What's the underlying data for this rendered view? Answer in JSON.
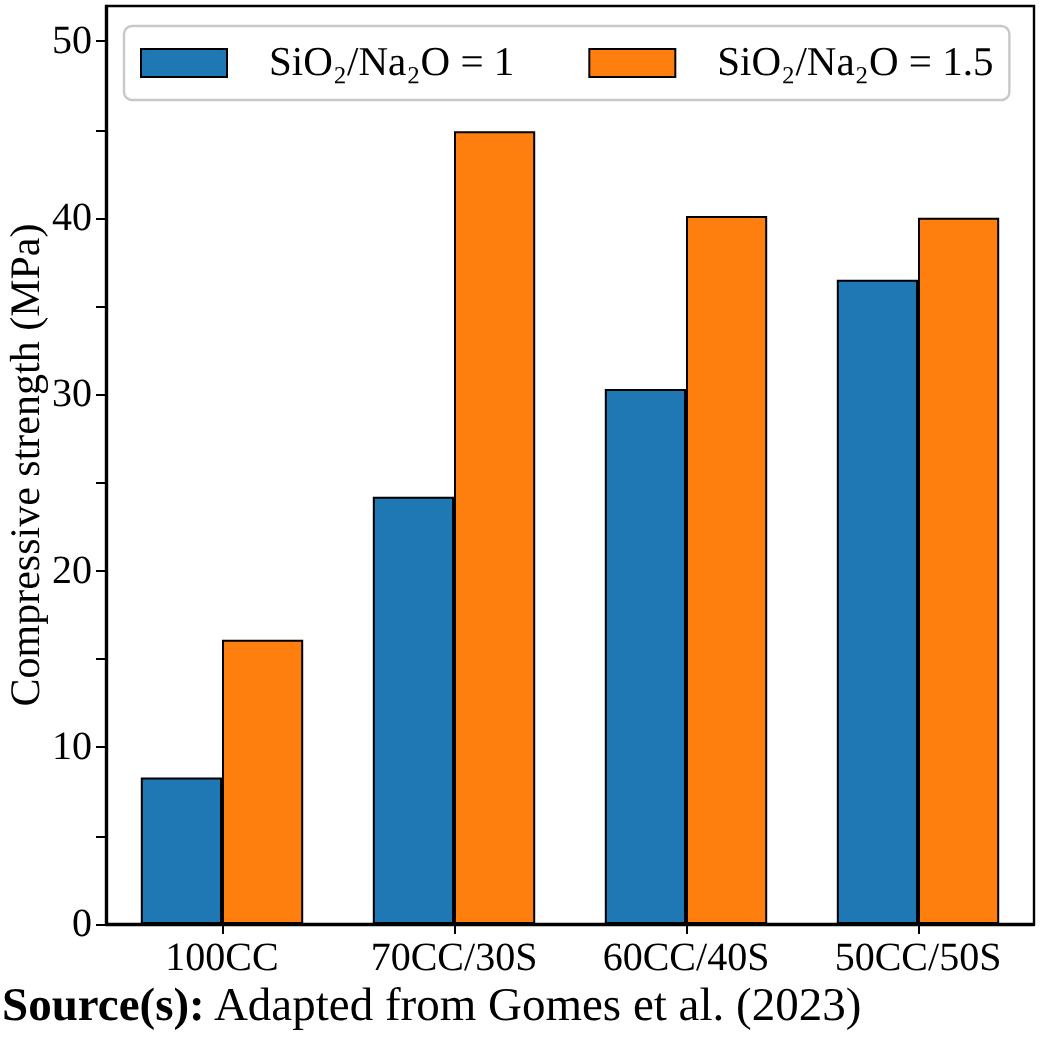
{
  "chart_data": {
    "type": "bar",
    "ylabel": "Compressive strength (MPa)",
    "annotations": [
      "Source(s): Adapted from Gomes et al. (2023)"
    ],
    "categories": [
      "100CC",
      "70CC/30S",
      "60CC/40S",
      "50CC/50S"
    ],
    "series": [
      {
        "name": "SiO₂/Na₂O = 1",
        "color": "#1f77b4",
        "values": [
          8.3,
          24.2,
          30.3,
          36.5
        ]
      },
      {
        "name": "SiO₂/Na₂O = 1.5",
        "color": "#ff7f0e",
        "values": [
          16.1,
          44.9,
          40.1,
          40.0
        ]
      }
    ],
    "ylim": [
      0,
      52
    ],
    "yticks": [
      0,
      {
        "value": 5,
        "label": null
      },
      10,
      {
        "value": 15,
        "label": null
      },
      20,
      {
        "value": 25,
        "label": null
      },
      30,
      {
        "value": 35,
        "label": null
      },
      40,
      {
        "value": 45,
        "label": null
      },
      50
    ],
    "grid": false,
    "legend": "top"
  }
}
